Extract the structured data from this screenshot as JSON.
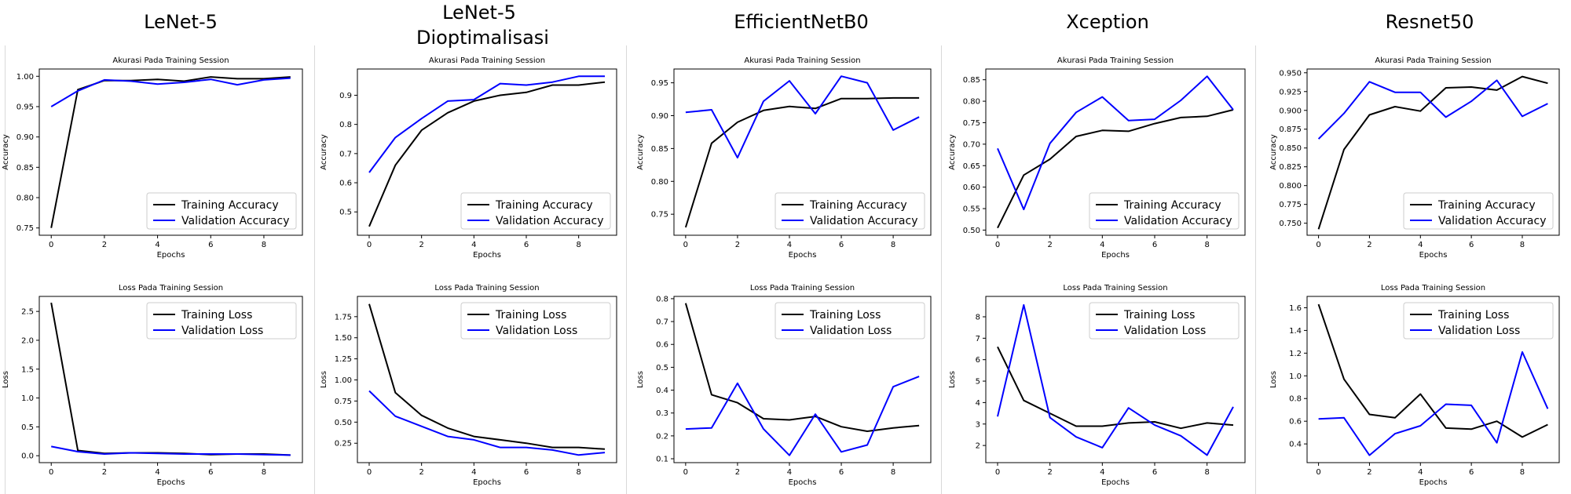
{
  "models": [
    {
      "title_lines": [
        "LeNet-5"
      ]
    },
    {
      "title_lines": [
        "LeNet-5",
        "Dioptimalisasi"
      ]
    },
    {
      "title_lines": [
        "EfficientNetB0"
      ]
    },
    {
      "title_lines": [
        "Xception"
      ]
    },
    {
      "title_lines": [
        "Resnet50"
      ]
    }
  ],
  "chart_data": [
    {
      "type": "line",
      "title": "Akurasi Pada Training Session",
      "xlabel": "Epochs",
      "ylabel": "Accuracy",
      "x": [
        0,
        1,
        2,
        3,
        4,
        5,
        6,
        7,
        8,
        9
      ],
      "xticks": [
        0,
        2,
        4,
        6,
        8
      ],
      "yticks": [
        "0.75",
        "0.80",
        "0.85",
        "0.90",
        "0.95",
        "1.00"
      ],
      "ylim": [
        0.738,
        1.012
      ],
      "legend": "lower-right",
      "series": [
        {
          "name": "Training Accuracy",
          "color": "#000000",
          "values": [
            0.75,
            0.978,
            0.993,
            0.993,
            0.995,
            0.992,
            0.999,
            0.996,
            0.996,
            0.999
          ]
        },
        {
          "name": "Validation Accuracy",
          "color": "#0000ff",
          "values": [
            0.95,
            0.976,
            0.994,
            0.992,
            0.987,
            0.99,
            0.995,
            0.986,
            0.994,
            0.997
          ]
        }
      ]
    },
    {
      "type": "line",
      "title": "Akurasi Pada Training Session",
      "xlabel": "Epochs",
      "ylabel": "Accuracy",
      "x": [
        0,
        1,
        2,
        3,
        4,
        5,
        6,
        7,
        8,
        9
      ],
      "xticks": [
        0,
        2,
        4,
        6,
        8
      ],
      "yticks": [
        "0.5",
        "0.6",
        "0.7",
        "0.8",
        "0.9"
      ],
      "ylim": [
        0.42,
        0.99
      ],
      "legend": "lower-right",
      "series": [
        {
          "name": "Training Accuracy",
          "color": "#000000",
          "values": [
            0.45,
            0.66,
            0.78,
            0.84,
            0.88,
            0.9,
            0.91,
            0.935,
            0.935,
            0.945
          ]
        },
        {
          "name": "Validation Accuracy",
          "color": "#0000ff",
          "values": [
            0.635,
            0.755,
            0.82,
            0.88,
            0.885,
            0.94,
            0.935,
            0.945,
            0.965,
            0.965
          ]
        }
      ]
    },
    {
      "type": "line",
      "title": "Akurasi Pada Training Session",
      "xlabel": "Epochs",
      "ylabel": "Accuracy",
      "x": [
        0,
        1,
        2,
        3,
        4,
        5,
        6,
        7,
        8,
        9
      ],
      "xticks": [
        0,
        2,
        4,
        6,
        8
      ],
      "yticks": [
        "0.75",
        "0.80",
        "0.85",
        "0.90",
        "0.95"
      ],
      "ylim": [
        0.718,
        0.971
      ],
      "legend": "lower-right",
      "series": [
        {
          "name": "Training Accuracy",
          "color": "#000000",
          "values": [
            0.73,
            0.858,
            0.89,
            0.908,
            0.914,
            0.911,
            0.926,
            0.926,
            0.927,
            0.927
          ]
        },
        {
          "name": "Validation Accuracy",
          "color": "#0000ff",
          "values": [
            0.905,
            0.909,
            0.836,
            0.922,
            0.953,
            0.903,
            0.96,
            0.95,
            0.878,
            0.898
          ]
        }
      ]
    },
    {
      "type": "line",
      "title": "Akurasi Pada Training Session",
      "xlabel": "Epochs",
      "ylabel": "Accuracy",
      "x": [
        0,
        1,
        2,
        3,
        4,
        5,
        6,
        7,
        8,
        9
      ],
      "xticks": [
        0,
        2,
        4,
        6,
        8
      ],
      "yticks": [
        "0.50",
        "0.55",
        "0.60",
        "0.65",
        "0.70",
        "0.75",
        "0.80",
        "0.85"
      ],
      "ylim": [
        0.488,
        0.875
      ],
      "legend": "lower-right",
      "series": [
        {
          "name": "Training Accuracy",
          "color": "#000000",
          "values": [
            0.505,
            0.628,
            0.665,
            0.718,
            0.732,
            0.73,
            0.748,
            0.762,
            0.765,
            0.78
          ]
        },
        {
          "name": "Validation Accuracy",
          "color": "#0000ff",
          "values": [
            0.69,
            0.548,
            0.702,
            0.774,
            0.81,
            0.755,
            0.758,
            0.802,
            0.858,
            0.78
          ]
        }
      ]
    },
    {
      "type": "line",
      "title": "Akurasi Pada Training Session",
      "xlabel": "Epochs",
      "ylabel": "Accuracy",
      "x": [
        0,
        1,
        2,
        3,
        4,
        5,
        6,
        7,
        8,
        9
      ],
      "xticks": [
        0,
        2,
        4,
        6,
        8
      ],
      "yticks": [
        "0.750",
        "0.775",
        "0.800",
        "0.825",
        "0.850",
        "0.875",
        "0.900",
        "0.925",
        "0.950"
      ],
      "ylim": [
        0.734,
        0.955
      ],
      "legend": "lower-right",
      "series": [
        {
          "name": "Training Accuracy",
          "color": "#000000",
          "values": [
            0.742,
            0.848,
            0.894,
            0.905,
            0.899,
            0.93,
            0.931,
            0.927,
            0.945,
            0.936
          ]
        },
        {
          "name": "Validation Accuracy",
          "color": "#0000ff",
          "values": [
            0.862,
            0.896,
            0.938,
            0.924,
            0.924,
            0.891,
            0.912,
            0.94,
            0.892,
            0.909
          ]
        }
      ]
    },
    {
      "type": "line",
      "title": "Loss Pada Training Session",
      "xlabel": "Epochs",
      "ylabel": "Loss",
      "x": [
        0,
        1,
        2,
        3,
        4,
        5,
        6,
        7,
        8,
        9
      ],
      "xticks": [
        0,
        2,
        4,
        6,
        8
      ],
      "yticks": [
        "0.0",
        "0.5",
        "1.0",
        "1.5",
        "2.0",
        "2.5"
      ],
      "ylim": [
        -0.12,
        2.76
      ],
      "legend": "upper-right",
      "series": [
        {
          "name": "Training Loss",
          "color": "#000000",
          "values": [
            2.65,
            0.09,
            0.04,
            0.05,
            0.05,
            0.04,
            0.02,
            0.03,
            0.03,
            0.01
          ]
        },
        {
          "name": "Validation Loss",
          "color": "#0000ff",
          "values": [
            0.16,
            0.07,
            0.03,
            0.05,
            0.04,
            0.03,
            0.03,
            0.03,
            0.02,
            0.01
          ]
        }
      ]
    },
    {
      "type": "line",
      "title": "Loss Pada Training Session",
      "xlabel": "Epochs",
      "ylabel": "Loss",
      "x": [
        0,
        1,
        2,
        3,
        4,
        5,
        6,
        7,
        8,
        9
      ],
      "xticks": [
        0,
        2,
        4,
        6,
        8
      ],
      "yticks": [
        "0.25",
        "0.50",
        "0.75",
        "1.00",
        "1.25",
        "1.50",
        "1.75"
      ],
      "ylim": [
        0.02,
        1.99
      ],
      "legend": "upper-right",
      "series": [
        {
          "name": "Training Loss",
          "color": "#000000",
          "values": [
            1.9,
            0.85,
            0.58,
            0.43,
            0.33,
            0.29,
            0.25,
            0.2,
            0.2,
            0.18
          ]
        },
        {
          "name": "Validation Loss",
          "color": "#0000ff",
          "values": [
            0.87,
            0.57,
            0.45,
            0.33,
            0.29,
            0.2,
            0.2,
            0.17,
            0.11,
            0.14
          ]
        }
      ]
    },
    {
      "type": "line",
      "title": "Loss Pada Training Session",
      "xlabel": "Epochs",
      "ylabel": "Loss",
      "x": [
        0,
        1,
        2,
        3,
        4,
        5,
        6,
        7,
        8,
        9
      ],
      "xticks": [
        0,
        2,
        4,
        6,
        8
      ],
      "yticks": [
        "0.1",
        "0.2",
        "0.3",
        "0.4",
        "0.5",
        "0.6",
        "0.7",
        "0.8"
      ],
      "ylim": [
        0.083,
        0.81
      ],
      "legend": "upper-right",
      "series": [
        {
          "name": "Training Loss",
          "color": "#000000",
          "values": [
            0.78,
            0.38,
            0.345,
            0.275,
            0.27,
            0.285,
            0.24,
            0.22,
            0.235,
            0.245
          ]
        },
        {
          "name": "Validation Loss",
          "color": "#0000ff",
          "values": [
            0.23,
            0.235,
            0.43,
            0.23,
            0.115,
            0.295,
            0.13,
            0.16,
            0.415,
            0.46
          ]
        }
      ]
    },
    {
      "type": "line",
      "title": "Loss Pada Training Session",
      "xlabel": "Epochs",
      "ylabel": "Loss",
      "x": [
        0,
        1,
        2,
        3,
        4,
        5,
        6,
        7,
        8,
        9
      ],
      "xticks": [
        0,
        2,
        4,
        6,
        8
      ],
      "yticks": [
        "2",
        "3",
        "4",
        "5",
        "6",
        "7",
        "8"
      ],
      "ylim": [
        1.2,
        8.95
      ],
      "legend": "upper-right",
      "series": [
        {
          "name": "Training Loss",
          "color": "#000000",
          "values": [
            6.6,
            4.1,
            3.5,
            2.9,
            2.9,
            3.05,
            3.1,
            2.8,
            3.05,
            2.95
          ]
        },
        {
          "name": "Validation Loss",
          "color": "#0000ff",
          "values": [
            3.35,
            8.55,
            3.3,
            2.4,
            1.9,
            3.75,
            2.95,
            2.45,
            1.55,
            3.8
          ]
        }
      ]
    },
    {
      "type": "line",
      "title": "Loss Pada Training Session",
      "xlabel": "Epochs",
      "ylabel": "Loss",
      "x": [
        0,
        1,
        2,
        3,
        4,
        5,
        6,
        7,
        8,
        9
      ],
      "xticks": [
        0,
        2,
        4,
        6,
        8
      ],
      "yticks": [
        "0.4",
        "0.6",
        "0.8",
        "1.0",
        "1.2",
        "1.4",
        "1.6"
      ],
      "ylim": [
        0.235,
        1.7
      ],
      "legend": "upper-right",
      "series": [
        {
          "name": "Training Loss",
          "color": "#000000",
          "values": [
            1.63,
            0.97,
            0.66,
            0.63,
            0.84,
            0.54,
            0.53,
            0.6,
            0.46,
            0.57
          ]
        },
        {
          "name": "Validation Loss",
          "color": "#0000ff",
          "values": [
            0.62,
            0.63,
            0.3,
            0.49,
            0.56,
            0.75,
            0.74,
            0.41,
            1.21,
            0.71
          ]
        }
      ]
    }
  ]
}
